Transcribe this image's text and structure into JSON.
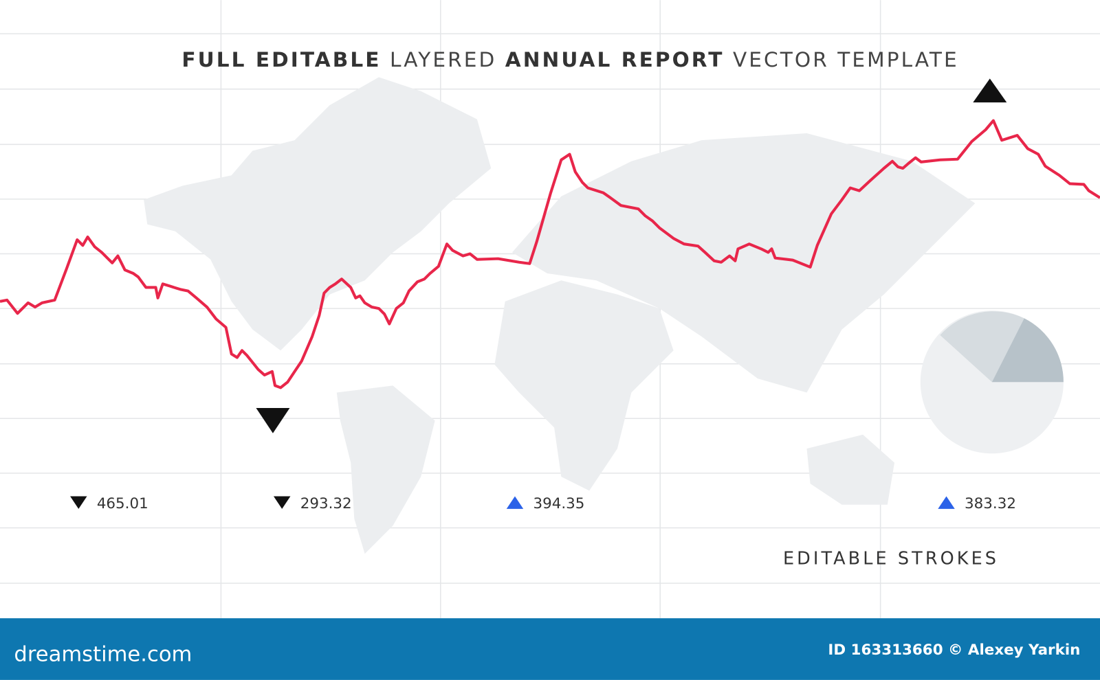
{
  "title": {
    "parts": [
      "FULL EDITABLE",
      "LAYERED",
      "ANNUAL REPORT",
      "VECTOR TEMPLATE"
    ]
  },
  "indicators": [
    {
      "direction": "down",
      "value": 465.01
    },
    {
      "direction": "down",
      "value": 293.32
    },
    {
      "direction": "up",
      "value": 394.35
    },
    {
      "direction": "up",
      "value": 383.32
    }
  ],
  "caption": "EDITABLE STROKES",
  "footer": {
    "logo": "dreamstime.com",
    "credit": "ID 163313660 © Alexey Yarkin"
  }
}
